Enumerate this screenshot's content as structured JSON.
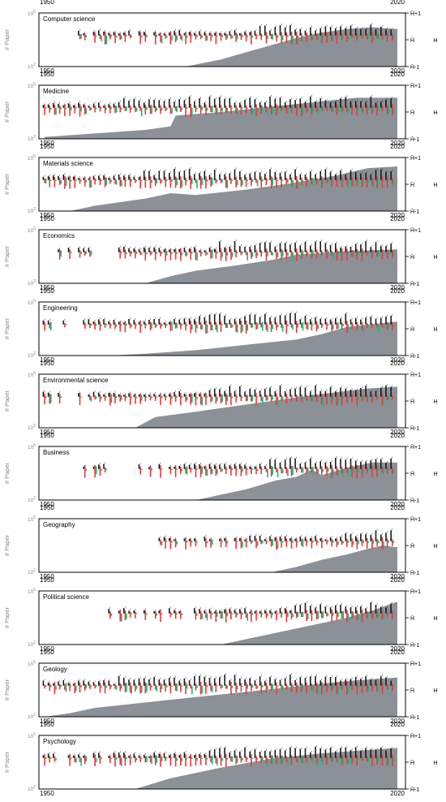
{
  "chart_data": {
    "type": "bar",
    "x_range": [
      1950,
      2020
    ],
    "x_ticks": [
      "1950",
      "2020"
    ],
    "y_label": "# Paper",
    "y_ticks": [
      "10^2",
      "10^5"
    ],
    "y_scale": "log",
    "right_axis_ticks": [
      "H̄+1",
      "H̄",
      "H̄-1"
    ],
    "right_axis_symbol": "H",
    "series_colors": {
      "black": "#1a1a1a",
      "red": "#e03b3b",
      "green": "#1fb57f",
      "area": "#8c9197"
    },
    "panels": [
      {
        "title": "Computer science",
        "area_start": 1978,
        "area": [
          [
            1978,
            2.0
          ],
          [
            1985,
            2.4
          ],
          [
            1990,
            2.8
          ],
          [
            1995,
            3.2
          ],
          [
            2000,
            3.6
          ],
          [
            2005,
            3.9
          ],
          [
            2010,
            4.1
          ],
          [
            2015,
            4.2
          ],
          [
            2020,
            4.1
          ]
        ]
      },
      {
        "title": "Medicine",
        "area_start": 1950,
        "area": [
          [
            1950,
            2.1
          ],
          [
            1960,
            2.3
          ],
          [
            1970,
            2.5
          ],
          [
            1975,
            2.7
          ],
          [
            1976,
            3.3
          ],
          [
            1985,
            3.5
          ],
          [
            1995,
            3.8
          ],
          [
            2005,
            4.1
          ],
          [
            2012,
            4.3
          ],
          [
            2020,
            4.3
          ]
        ]
      },
      {
        "title": "Materials science",
        "area_start": 1955,
        "area": [
          [
            1955,
            2.0
          ],
          [
            1960,
            2.3
          ],
          [
            1970,
            2.7
          ],
          [
            1975,
            3.0
          ],
          [
            1980,
            2.9
          ],
          [
            1990,
            3.2
          ],
          [
            2000,
            3.6
          ],
          [
            2008,
            4.0
          ],
          [
            2014,
            4.4
          ],
          [
            2020,
            4.5
          ]
        ]
      },
      {
        "title": "Economics",
        "area_start": 1970,
        "area": [
          [
            1970,
            2.0
          ],
          [
            1975,
            2.4
          ],
          [
            1980,
            2.7
          ],
          [
            1988,
            3.0
          ],
          [
            1995,
            3.3
          ],
          [
            2000,
            3.6
          ],
          [
            2010,
            3.8
          ],
          [
            2020,
            3.9
          ]
        ]
      },
      {
        "title": "Engineering",
        "area_start": 1963,
        "area": [
          [
            1963,
            2.0
          ],
          [
            1970,
            2.1
          ],
          [
            1980,
            2.3
          ],
          [
            1990,
            2.6
          ],
          [
            2000,
            2.9
          ],
          [
            2005,
            3.2
          ],
          [
            2010,
            3.6
          ],
          [
            2020,
            3.9
          ]
        ]
      },
      {
        "title": "Environmental science",
        "area_start": 1968,
        "area": [
          [
            1968,
            2.0
          ],
          [
            1972,
            2.6
          ],
          [
            1980,
            2.9
          ],
          [
            1990,
            3.3
          ],
          [
            2000,
            3.7
          ],
          [
            2008,
            4.0
          ],
          [
            2014,
            4.2
          ],
          [
            2020,
            4.3
          ]
        ]
      },
      {
        "title": "Business",
        "area_start": 1980,
        "area": [
          [
            1980,
            2.0
          ],
          [
            1990,
            2.6
          ],
          [
            1996,
            3.1
          ],
          [
            2000,
            3.3
          ],
          [
            2003,
            3.7
          ],
          [
            2005,
            3.4
          ],
          [
            2010,
            3.8
          ],
          [
            2015,
            4.1
          ],
          [
            2020,
            4.1
          ]
        ]
      },
      {
        "title": "Geography",
        "area_start": 1995,
        "area": [
          [
            1995,
            2.0
          ],
          [
            2000,
            2.3
          ],
          [
            2005,
            2.7
          ],
          [
            2010,
            3.0
          ],
          [
            2014,
            3.3
          ],
          [
            2017,
            3.5
          ],
          [
            2020,
            3.4
          ]
        ]
      },
      {
        "title": "Political science",
        "area_start": 1985,
        "area": [
          [
            1985,
            2.0
          ],
          [
            1990,
            2.3
          ],
          [
            2000,
            2.9
          ],
          [
            2010,
            3.5
          ],
          [
            2015,
            3.9
          ],
          [
            2020,
            4.4
          ]
        ]
      },
      {
        "title": "Geology",
        "area_start": 1950,
        "area": [
          [
            1950,
            2.0
          ],
          [
            1955,
            2.2
          ],
          [
            1960,
            2.5
          ],
          [
            1970,
            2.8
          ],
          [
            1980,
            3.1
          ],
          [
            1990,
            3.4
          ],
          [
            2000,
            3.7
          ],
          [
            2010,
            4.0
          ],
          [
            2020,
            4.2
          ]
        ]
      },
      {
        "title": "Psychology",
        "area_start": 1968,
        "area": [
          [
            1968,
            2.0
          ],
          [
            1975,
            2.6
          ],
          [
            1985,
            3.2
          ],
          [
            1995,
            3.7
          ],
          [
            2005,
            4.0
          ],
          [
            2015,
            4.2
          ],
          [
            2020,
            4.3
          ]
        ]
      }
    ]
  }
}
